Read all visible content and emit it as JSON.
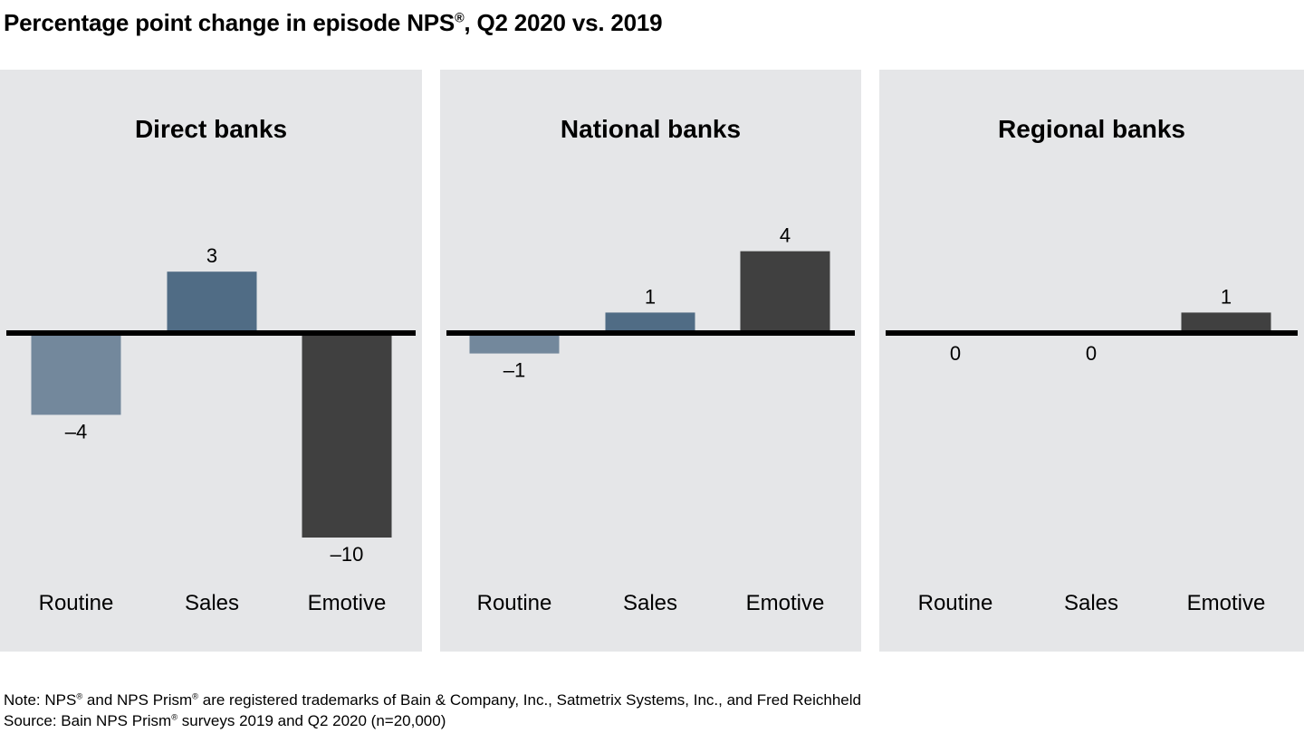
{
  "chart_data": {
    "type": "bar",
    "title": "Percentage point change in episode NPS®, Q2 2020 vs. 2019",
    "title_parts": {
      "main": "Percentage point change in episode NPS",
      "mark": "®",
      "rest": ", Q2 2020 vs. 2019"
    },
    "categories": [
      "Routine",
      "Sales",
      "Emotive"
    ],
    "colors": {
      "Routine": "#73889c",
      "Sales": "#506c85",
      "Emotive": "#404040",
      "panel_bg": "#e5e6e8",
      "baseline": "#000000"
    },
    "ylim": [
      -10.5,
      4.5
    ],
    "grid": false,
    "legend": "none",
    "panels": [
      {
        "title": "Direct banks",
        "values": [
          -4,
          3,
          -10
        ],
        "labels": [
          "–4",
          "3",
          "–10"
        ]
      },
      {
        "title": "National banks",
        "values": [
          -1,
          1,
          4
        ],
        "labels": [
          "–1",
          "1",
          "4"
        ]
      },
      {
        "title": "Regional banks",
        "values": [
          0,
          0,
          1
        ],
        "labels": [
          "0",
          "0",
          "1"
        ]
      }
    ]
  },
  "notes": {
    "note_prefix": "Note: NPS",
    "note_mid": " and NPS Prism",
    "note_rest": " are registered trademarks of Bain & Company, Inc., Satmetrix Systems, Inc., and Fred Reichheld",
    "source_prefix": "Source: Bain NPS Prism",
    "source_rest": " surveys 2019 and Q2 2020 (n=20,000)",
    "mark": "®"
  }
}
